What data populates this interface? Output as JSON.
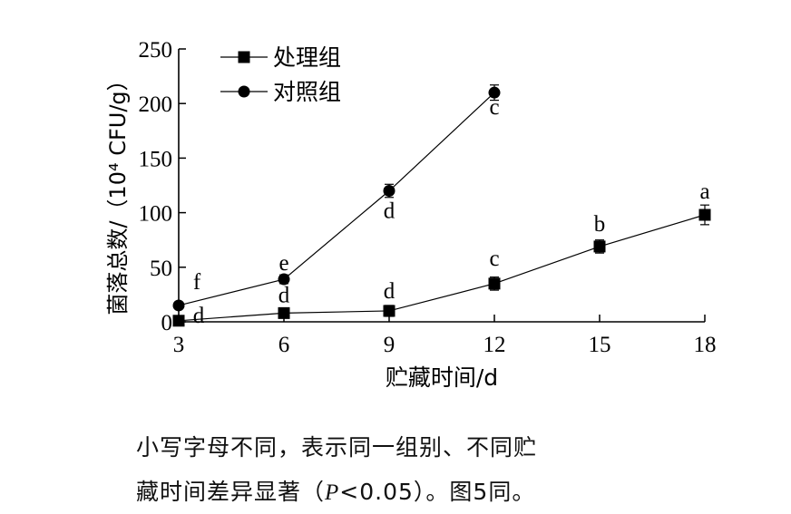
{
  "chart_data": {
    "type": "line",
    "xlabel": "贮藏时间/d",
    "ylabel": "菌落总数/（10⁴ CFU/g）",
    "x": [
      3,
      6,
      9,
      12,
      15,
      18
    ],
    "xlim": [
      3,
      18
    ],
    "ylim": [
      0,
      250
    ],
    "xticks": [
      "3",
      "6",
      "9",
      "12",
      "15",
      "18"
    ],
    "yticks": [
      "0",
      "50",
      "100",
      "150",
      "200",
      "250"
    ],
    "grid": false,
    "legend_position": "top-left",
    "series": [
      {
        "name": "处理组",
        "marker": "square",
        "x": [
          3,
          6,
          9,
          12,
          15,
          18
        ],
        "values": [
          1,
          8,
          10,
          35,
          69,
          98
        ],
        "errors": [
          2,
          4,
          5,
          6,
          6,
          9
        ],
        "letters": [
          "d",
          "d",
          "d",
          "c",
          "b",
          "a"
        ]
      },
      {
        "name": "对照组",
        "marker": "circle",
        "x": [
          3,
          6,
          9,
          12
        ],
        "values": [
          15,
          39,
          120,
          210
        ],
        "errors": [
          3,
          4,
          6,
          7
        ],
        "letters": [
          "f",
          "e",
          "d",
          "c"
        ]
      }
    ]
  },
  "caption": {
    "line1": "小写字母不同，表示同一组别、不同贮",
    "line2_before": "藏时间差异显著（",
    "line2_p": "P",
    "line2_after": "<0.05）。图5同。"
  }
}
